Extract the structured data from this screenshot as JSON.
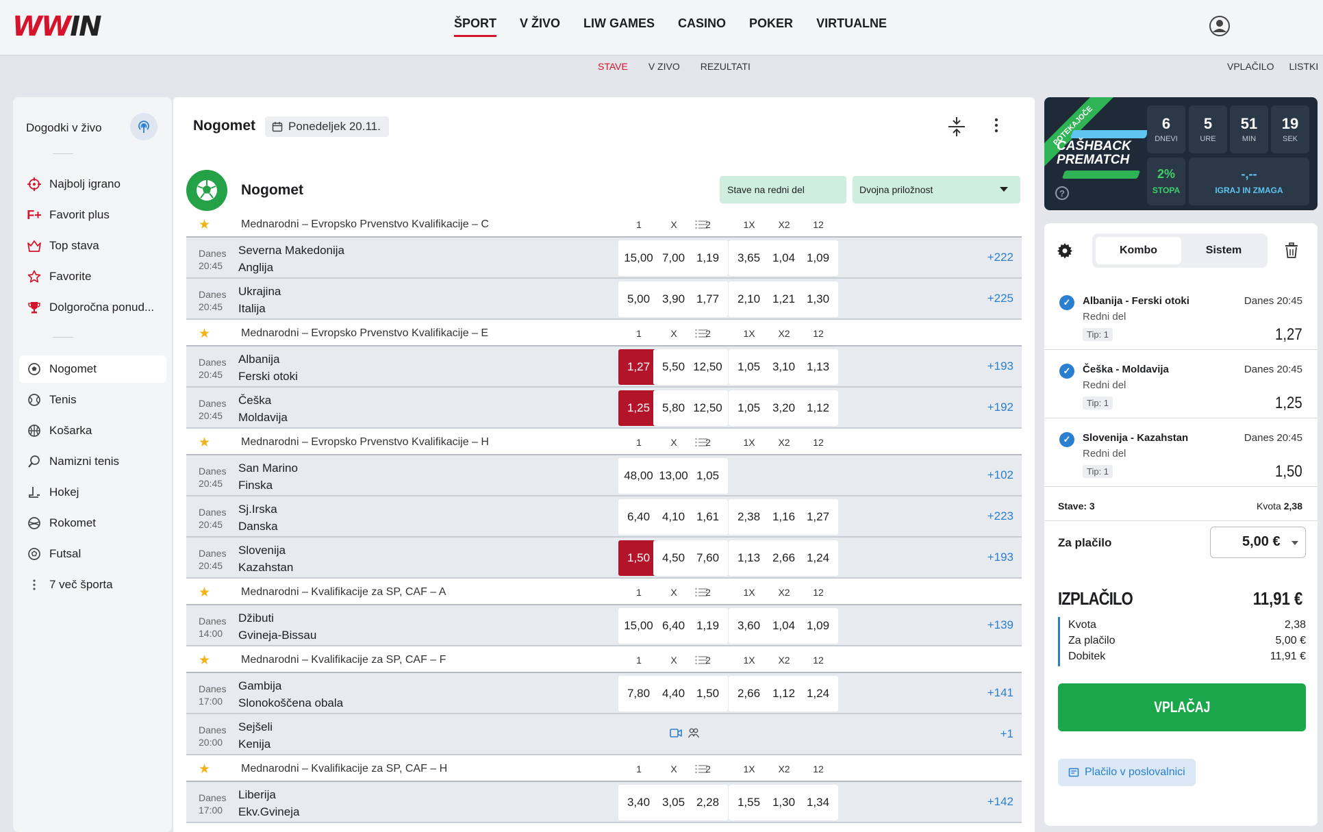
{
  "logo": {
    "text_a": "WW",
    "text_b": "IN"
  },
  "nav": {
    "items": [
      "ŠPORT",
      "V ŽIVO",
      "LIW GAMES",
      "CASINO",
      "POKER",
      "VIRTUALNE"
    ]
  },
  "subnav": {
    "items": [
      "STAVE",
      "V ZIVO",
      "REZULTATI"
    ],
    "right": [
      "VPLAČILO",
      "LISTKI"
    ]
  },
  "sidebar": {
    "live_label": "Dogodki v živo",
    "top_items": [
      "Najbolj igrano",
      "Favorit plus",
      "Top stava",
      "Favorite",
      "Dolgoročna ponud..."
    ],
    "sports": [
      "Nogomet",
      "Tenis",
      "Košarka",
      "Namizni tenis",
      "Hokej",
      "Rokomet",
      "Futsal",
      "7 več športa"
    ],
    "favorit_plus_icon": "F+"
  },
  "main": {
    "title": "Nogomet",
    "date": "Ponedeljek 20.11.",
    "sport_name": "Nogomet",
    "market_a": "Stave na redni del",
    "market_b": "Dvojna priložnost"
  },
  "table_headers": [
    "1",
    "X",
    "2",
    "1X",
    "X2",
    "12"
  ],
  "fplus": "F+",
  "day_label": "Danes",
  "leagues": [
    {
      "name": "Mednarodni – Evropsko Prvenstvo Kvalifikacije  – C",
      "matches": [
        {
          "time": "20:45",
          "home": "Severna Makedonija",
          "away": "Anglija",
          "fplus": true,
          "fav": false,
          "live": true,
          "video": false,
          "odds": [
            "15,00",
            "7,00",
            "1,19",
            "3,65",
            "1,04",
            "1,09"
          ],
          "sel": -1,
          "more": "+222"
        },
        {
          "time": "20:45",
          "home": "Ukrajina",
          "away": "Italija",
          "fplus": false,
          "fav": true,
          "live": true,
          "video": false,
          "odds": [
            "5,00",
            "3,90",
            "1,77",
            "2,10",
            "1,21",
            "1,30"
          ],
          "sel": -1,
          "more": "+225"
        }
      ]
    },
    {
      "name": "Mednarodni – Evropsko Prvenstvo Kvalifikacije  – E",
      "matches": [
        {
          "time": "20:45",
          "home": "Albanija",
          "away": "Ferski otoki",
          "fplus": true,
          "fav": false,
          "live": true,
          "video": false,
          "odds": [
            "1,27",
            "5,50",
            "12,50",
            "1,05",
            "3,10",
            "1,13"
          ],
          "sel": 0,
          "more": "+193"
        },
        {
          "time": "20:45",
          "home": "Češka",
          "away": "Moldavija",
          "fplus": true,
          "fav": false,
          "live": true,
          "video": false,
          "odds": [
            "1,25",
            "5,80",
            "12,50",
            "1,05",
            "3,20",
            "1,12"
          ],
          "sel": 0,
          "more": "+192"
        }
      ]
    },
    {
      "name": "Mednarodni – Evropsko Prvenstvo Kvalifikacije  – H",
      "matches": [
        {
          "time": "20:45",
          "home": "San Marino",
          "away": "Finska",
          "fplus": false,
          "fav": false,
          "live": true,
          "video": false,
          "odds": [
            "48,00",
            "13,00",
            "1,05",
            "",
            "",
            ""
          ],
          "sel": -1,
          "more": "+102"
        },
        {
          "time": "20:45",
          "home": "Sj.Irska",
          "away": "Danska",
          "fplus": false,
          "fav": true,
          "live": true,
          "video": false,
          "odds": [
            "6,40",
            "4,10",
            "1,61",
            "2,38",
            "1,16",
            "1,27"
          ],
          "sel": -1,
          "more": "+223"
        },
        {
          "time": "20:45",
          "home": "Slovenija",
          "away": "Kazahstan",
          "fplus": true,
          "fav": true,
          "live": true,
          "video": false,
          "odds": [
            "1,50",
            "4,50",
            "7,60",
            "1,13",
            "2,66",
            "1,24"
          ],
          "sel": 0,
          "more": "+193"
        }
      ]
    },
    {
      "name": "Mednarodni – Kvalifikacije za SP, CAF  – A",
      "matches": [
        {
          "time": "14:00",
          "home": "Džibuti",
          "away": "Gvineja-Bissau",
          "fplus": false,
          "fav": false,
          "live": false,
          "video": true,
          "odds": [
            "15,00",
            "6,40",
            "1,19",
            "3,60",
            "1,04",
            "1,09"
          ],
          "sel": -1,
          "more": "+139"
        }
      ]
    },
    {
      "name": "Mednarodni – Kvalifikacije za SP, CAF  – F",
      "matches": [
        {
          "time": "17:00",
          "home": "Gambija",
          "away": "Slonokoščena obala",
          "fplus": false,
          "fav": true,
          "live": false,
          "video": true,
          "odds": [
            "7,80",
            "4,40",
            "1,50",
            "2,66",
            "1,12",
            "1,24"
          ],
          "sel": -1,
          "more": "+141"
        },
        {
          "time": "20:00",
          "home": "Sejšeli",
          "away": "Kenija",
          "fplus": false,
          "fav": false,
          "live": false,
          "video": true,
          "odds": [
            "",
            "",
            "",
            "",
            "",
            ""
          ],
          "sel": -1,
          "more": "+1"
        }
      ]
    },
    {
      "name": "Mednarodni – Kvalifikacije za SP, CAF  – H",
      "matches": [
        {
          "time": "17:00",
          "home": "Liberija",
          "away": "Ekv.Gvineja",
          "fplus": false,
          "fav": false,
          "live": false,
          "video": true,
          "odds": [
            "3,40",
            "3,05",
            "2,28",
            "1,55",
            "1,30",
            "1,34"
          ],
          "sel": -1,
          "more": "+142"
        }
      ]
    }
  ],
  "promo": {
    "ribbon": "POTEKAJOČE",
    "title_line1": "CAŠHBACK",
    "title_line2": "PREMATCH",
    "help": "?",
    "timer": [
      {
        "n": "6",
        "u": "DNEVI"
      },
      {
        "n": "5",
        "u": "URE"
      },
      {
        "n": "51",
        "u": "MIN"
      },
      {
        "n": "19",
        "u": "SEK"
      }
    ],
    "stopa_value": "2%",
    "stopa_label": "STOPA",
    "igraj_value": "-,--",
    "igraj_label": "IGRAJ IN ZMAGA"
  },
  "slip": {
    "tab_kombo": "Kombo",
    "tab_sistem": "Sistem",
    "bets": [
      {
        "match": "Albanija - Ferski otoki",
        "time": "Danes 20:45",
        "market": "Redni del",
        "tip": "Tip: 1",
        "odd": "1,27"
      },
      {
        "match": "Češka - Moldavija",
        "time": "Danes 20:45",
        "market": "Redni del",
        "tip": "Tip: 1",
        "odd": "1,25"
      },
      {
        "match": "Slovenija - Kazahstan",
        "time": "Danes 20:45",
        "market": "Redni del",
        "tip": "Tip: 1",
        "odd": "1,50"
      }
    ],
    "stave": "Stave: 3",
    "kvota_label": "Kvota",
    "kvota_total": "2,38",
    "za_placilo_label": "Za plačilo",
    "za_placilo_value": "5,00 €",
    "izplacilo_label": "IZPLAČILO",
    "izplacilo_value": "11,91 €",
    "breakdown": [
      {
        "k": "Kvota",
        "v": "2,38"
      },
      {
        "k": "Za plačilo",
        "v": "5,00 €"
      },
      {
        "k": "Dobitek",
        "v": "11,91 €"
      }
    ],
    "vplacaj": "VPLAČAJ",
    "poslovalnica": "Plačilo v poslovalnici"
  },
  "colors": {
    "brand_red": "#d5132b",
    "selected_odd": "#b3142a",
    "accent_blue": "#2a7fd0",
    "green": "#1aa64b"
  }
}
